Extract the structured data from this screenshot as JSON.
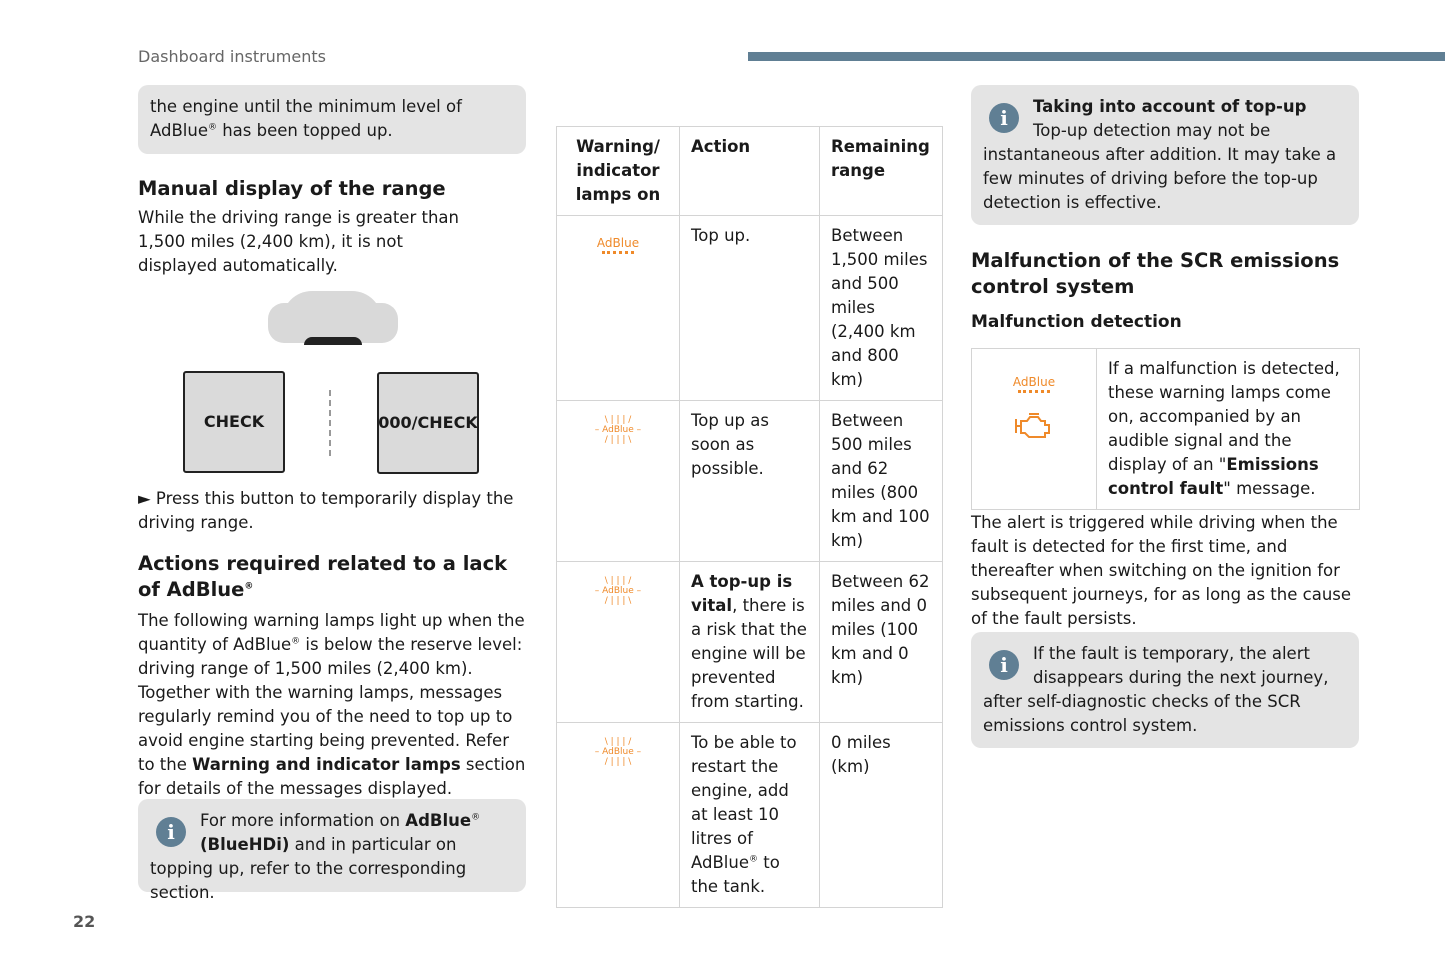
{
  "header": {
    "section_title": "Dashboard instruments",
    "accent_color": "#607f94"
  },
  "left": {
    "note_top": {
      "text_a": "the engine until the minimum level of AdBlue",
      "sup": "®",
      "text_b": " has been topped up."
    },
    "manual_heading": "Manual display of the range",
    "manual_text": "While the driving range is greater than 1,500 miles (2,400 km), it is not displayed automatically.",
    "figure": {
      "left_button": "CHECK",
      "right_button": "000/CHECK"
    },
    "press_text": "► Press this button to temporarily display the driving range.",
    "actions_heading_a": "Actions required related to a lack of AdBlue",
    "actions_heading_sup": "®",
    "actions_p1": "The following warning lamps light up when the quantity of AdBlue",
    "actions_p1_sup": "®",
    "actions_p2": " is below the reserve level: driving range of 1,500 miles (2,400 km). Together with the warning lamps, messages regularly remind you of the need to top up to avoid engine starting being prevented. Refer to the ",
    "actions_bold": "Warning and indicator lamps",
    "actions_p3": " section for details of the messages displayed.",
    "note_bottom": {
      "a": "For more information on ",
      "bold1": "AdBlue",
      "sup": "®",
      "bold2": " (BlueHDi)",
      "b": " and in particular on topping up, refer to the corresponding section."
    }
  },
  "table": {
    "headers": [
      "Warning/ indicator lamps on",
      "Action",
      "Remaining range"
    ],
    "lamp_label": "AdBlue",
    "lamp_color": "#ef8a2a",
    "rows": [
      {
        "lamp": "adblue-icon",
        "action": "Top up.",
        "range": "Between 1,500 miles and 500 miles (2,400 km and 800 km)"
      },
      {
        "lamp": "adblue-flashing-icon",
        "action": "Top up as soon as possible.",
        "range": "Between 500 miles and 62 miles (800 km and 100 km)"
      },
      {
        "lamp": "adblue-flashing-icon",
        "action_bold": "A top-up is vital",
        "action": ", there is a risk that the engine will be prevented from starting.",
        "range": "Between 62 miles and 0 miles (100 km and 0 km)"
      },
      {
        "lamp": "adblue-flashing-icon",
        "action": "To be able to restart the engine, add at least 10 litres of AdBlue",
        "action_sup": "®",
        "action_b": " to the tank.",
        "range": "0 miles (km)"
      }
    ]
  },
  "right": {
    "note_top": {
      "title": "Taking into account of top-up",
      "text": "Top-up detection may not be instantaneous after addition. It may take a few minutes of driving before the top-up detection is effective."
    },
    "heading": "Malfunction of the SCR emissions control system",
    "subheading": "Malfunction detection",
    "box": {
      "lamp_label": "AdBlue",
      "text_a": "If a malfunction is detected, these warning lamps come on, accompanied by an audible signal and the display of an \"",
      "bold": "Emissions control fault",
      "text_b": "\" message."
    },
    "alert_text": "The alert is triggered while driving when the fault is detected for the first time, and thereafter when switching on the ignition for subsequent journeys, for as long as the cause of the fault persists.",
    "note_bottom": "If the fault is temporary, the alert disappears during the next journey, after self-diagnostic checks of the SCR emissions control system."
  },
  "footer": {
    "page_number": "22"
  }
}
